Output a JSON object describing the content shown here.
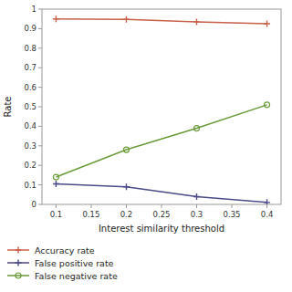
{
  "chart_data": {
    "type": "line",
    "x": [
      0.1,
      0.2,
      0.3,
      0.4
    ],
    "xlabel": "Interest similarity threshold",
    "ylabel": "Rate",
    "xlim": [
      0.08,
      0.42
    ],
    "ylim": [
      0,
      1
    ],
    "xticks": [
      0.1,
      0.15,
      0.2,
      0.25,
      0.3,
      0.35,
      0.4
    ],
    "yticks": [
      0,
      0.1,
      0.2,
      0.3,
      0.4,
      0.5,
      0.6,
      0.7,
      0.8,
      0.9,
      1
    ],
    "grid": false,
    "legend": "bottom",
    "series": [
      {
        "name": "Accuracy rate",
        "color": "#c8604a",
        "marker": "plus",
        "values": [
          0.95,
          0.948,
          0.935,
          0.925
        ]
      },
      {
        "name": "False positive rate",
        "color": "#4a4a8a",
        "marker": "plus",
        "values": [
          0.105,
          0.09,
          0.04,
          0.01
        ]
      },
      {
        "name": "False negative rate",
        "color": "#6a9a3a",
        "marker": "circle",
        "values": [
          0.14,
          0.28,
          0.39,
          0.51
        ]
      }
    ]
  }
}
